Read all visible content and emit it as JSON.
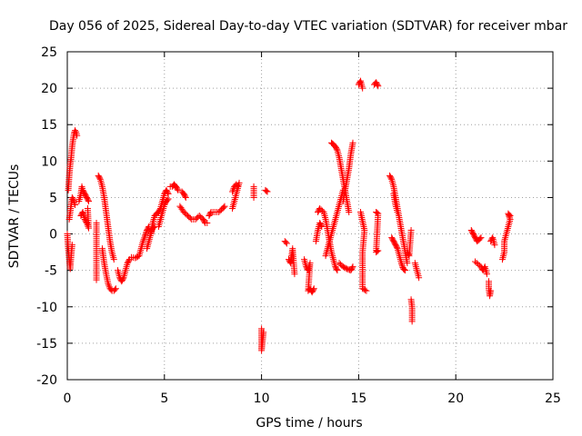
{
  "chart_data": {
    "type": "scatter",
    "title": "Day 056 of 2025, Sidereal Day-to-day VTEC variation (SDTVAR) for receiver mbar",
    "xlabel": "GPS time / hours",
    "ylabel": "SDTVAR / TECUs",
    "xlim": [
      0,
      25
    ],
    "ylim": [
      -20,
      25
    ],
    "xticks": [
      0,
      5,
      10,
      15,
      20,
      25
    ],
    "yticks": [
      -20,
      -15,
      -10,
      -5,
      0,
      5,
      10,
      15,
      20,
      25
    ],
    "x_tick_labels": [
      "0",
      "5",
      "10",
      "15",
      "20",
      "25"
    ],
    "y_tick_labels": [
      "-20",
      "-15",
      "-10",
      "-5",
      "0",
      "5",
      "10",
      "15",
      "20",
      "25"
    ],
    "grid": true,
    "marker": "+",
    "color": "#ff0000",
    "series": [
      {
        "name": "SDTVAR",
        "segments": [
          [
            [
              0.0,
              0.0
            ],
            [
              0.05,
              -2.0
            ],
            [
              0.1,
              -3.5
            ],
            [
              0.15,
              -4.8
            ],
            [
              0.2,
              -3.0
            ],
            [
              0.25,
              -1.5
            ]
          ],
          [
            [
              0.05,
              6.0
            ],
            [
              0.1,
              8.0
            ],
            [
              0.15,
              9.5
            ],
            [
              0.2,
              10.5
            ],
            [
              0.25,
              12.0
            ],
            [
              0.3,
              13.0
            ],
            [
              0.35,
              13.8
            ],
            [
              0.4,
              14.2
            ],
            [
              0.45,
              14.0
            ],
            [
              0.5,
              13.5
            ]
          ],
          [
            [
              0.1,
              2.0
            ],
            [
              0.15,
              3.0
            ],
            [
              0.2,
              4.0
            ],
            [
              0.25,
              5.0
            ],
            [
              0.3,
              4.8
            ],
            [
              0.4,
              4.0
            ]
          ],
          [
            [
              0.6,
              4.5
            ],
            [
              0.7,
              5.5
            ],
            [
              0.75,
              6.5
            ],
            [
              0.8,
              6.0
            ],
            [
              0.9,
              5.5
            ],
            [
              1.0,
              5.0
            ],
            [
              1.1,
              4.5
            ]
          ],
          [
            [
              0.7,
              2.5
            ],
            [
              0.8,
              3.0
            ],
            [
              0.9,
              2.0
            ],
            [
              1.0,
              1.5
            ],
            [
              1.1,
              0.8
            ],
            [
              1.05,
              3.5
            ]
          ],
          [
            [
              1.5,
              1.5
            ],
            [
              1.5,
              -6.3
            ]
          ],
          [
            [
              1.6,
              8.0
            ],
            [
              1.7,
              7.5
            ],
            [
              1.8,
              6.5
            ],
            [
              1.9,
              5.0
            ],
            [
              2.0,
              3.0
            ],
            [
              2.1,
              1.0
            ],
            [
              2.2,
              -1.0
            ],
            [
              2.3,
              -2.5
            ],
            [
              2.4,
              -3.5
            ]
          ],
          [
            [
              1.8,
              -2.0
            ],
            [
              1.9,
              -4.0
            ],
            [
              2.0,
              -5.5
            ],
            [
              2.1,
              -6.8
            ],
            [
              2.2,
              -7.5
            ],
            [
              2.3,
              -7.8
            ],
            [
              2.4,
              -7.8
            ],
            [
              2.5,
              -7.5
            ]
          ],
          [
            [
              2.6,
              -5.0
            ],
            [
              2.7,
              -6.0
            ],
            [
              2.8,
              -6.5
            ],
            [
              2.9,
              -6.0
            ],
            [
              3.0,
              -5.0
            ],
            [
              3.1,
              -4.0
            ],
            [
              3.2,
              -3.5
            ]
          ],
          [
            [
              3.3,
              -3.2
            ],
            [
              3.5,
              -3.3
            ],
            [
              3.7,
              -3.0
            ],
            [
              3.8,
              -2.0
            ],
            [
              3.9,
              -1.0
            ],
            [
              4.0,
              -0.3
            ],
            [
              4.1,
              0.5
            ],
            [
              4.2,
              1.0
            ]
          ],
          [
            [
              4.1,
              -2.0
            ],
            [
              4.2,
              -1.0
            ],
            [
              4.3,
              0.0
            ],
            [
              4.4,
              0.8
            ],
            [
              4.5,
              1.0
            ]
          ],
          [
            [
              4.3,
              0.0
            ],
            [
              4.4,
              1.5
            ],
            [
              4.5,
              2.5
            ],
            [
              4.6,
              2.8
            ],
            [
              4.7,
              3.0
            ],
            [
              4.8,
              3.5
            ],
            [
              4.9,
              4.5
            ],
            [
              5.0,
              5.5
            ],
            [
              5.1,
              6.0
            ],
            [
              5.2,
              5.5
            ]
          ],
          [
            [
              4.7,
              1.0
            ],
            [
              4.8,
              2.0
            ],
            [
              4.9,
              3.0
            ],
            [
              5.0,
              4.0
            ],
            [
              5.1,
              4.5
            ],
            [
              5.2,
              4.8
            ]
          ],
          [
            [
              5.3,
              6.5
            ],
            [
              5.4,
              6.5
            ],
            [
              5.5,
              6.8
            ],
            [
              5.6,
              6.5
            ],
            [
              5.7,
              6.0
            ]
          ],
          [
            [
              5.9,
              5.8
            ],
            [
              6.0,
              5.5
            ],
            [
              6.1,
              5.0
            ]
          ],
          [
            [
              5.8,
              3.8
            ],
            [
              6.0,
              3.0
            ],
            [
              6.2,
              2.5
            ],
            [
              6.4,
              2.0
            ],
            [
              6.6,
              2.0
            ],
            [
              6.8,
              2.5
            ],
            [
              7.0,
              2.0
            ],
            [
              7.1,
              1.5
            ],
            [
              7.2,
              1.5
            ]
          ],
          [
            [
              7.3,
              2.5
            ],
            [
              7.4,
              3.0
            ],
            [
              7.6,
              3.0
            ],
            [
              7.8,
              3.0
            ],
            [
              8.0,
              3.5
            ],
            [
              8.1,
              3.8
            ]
          ],
          [
            [
              8.5,
              3.5
            ],
            [
              8.6,
              4.5
            ],
            [
              8.7,
              5.5
            ],
            [
              8.8,
              6.5
            ],
            [
              8.85,
              7.0
            ]
          ],
          [
            [
              8.5,
              5.8
            ],
            [
              8.6,
              6.5
            ],
            [
              8.7,
              6.8
            ],
            [
              8.8,
              6.5
            ]
          ],
          [
            [
              9.6,
              6.5
            ],
            [
              9.6,
              5.0
            ]
          ],
          [
            [
              10.0,
              -13.0
            ],
            [
              10.0,
              -14.0
            ],
            [
              10.0,
              -15.0
            ],
            [
              10.0,
              -16.0
            ],
            [
              10.1,
              -13.5
            ]
          ],
          [
            [
              10.2,
              6.0
            ],
            [
              10.3,
              5.8
            ]
          ],
          [
            [
              11.2,
              -1.0
            ],
            [
              11.3,
              -1.3
            ]
          ],
          [
            [
              11.4,
              -3.5
            ],
            [
              11.5,
              -4.0
            ],
            [
              11.6,
              -2.0
            ],
            [
              11.7,
              -5.5
            ]
          ],
          [
            [
              12.2,
              -3.5
            ],
            [
              12.3,
              -4.5
            ],
            [
              12.4,
              -5.0
            ],
            [
              12.5,
              -4.0
            ],
            [
              12.4,
              -7.8
            ],
            [
              12.5,
              -7.5
            ],
            [
              12.6,
              -8.0
            ],
            [
              12.7,
              -7.5
            ]
          ],
          [
            [
              12.8,
              -1.0
            ],
            [
              12.9,
              0.5
            ],
            [
              13.0,
              1.5
            ],
            [
              13.1,
              1.0
            ]
          ],
          [
            [
              12.9,
              3.0
            ],
            [
              13.0,
              3.5
            ],
            [
              13.2,
              3.0
            ],
            [
              13.3,
              2.0
            ],
            [
              13.4,
              0.5
            ],
            [
              13.5,
              -1.0
            ],
            [
              13.6,
              -2.5
            ],
            [
              13.7,
              -3.5
            ],
            [
              13.8,
              -4.5
            ],
            [
              13.9,
              -5.0
            ]
          ],
          [
            [
              13.3,
              -3.0
            ],
            [
              13.4,
              -2.0
            ],
            [
              13.5,
              -1.0
            ],
            [
              13.6,
              0.0
            ],
            [
              13.7,
              1.0
            ],
            [
              13.8,
              2.0
            ],
            [
              13.9,
              3.0
            ],
            [
              14.0,
              4.0
            ],
            [
              14.1,
              5.0
            ],
            [
              14.2,
              6.0
            ]
          ],
          [
            [
              13.6,
              12.5
            ],
            [
              13.7,
              12.3
            ],
            [
              13.8,
              12.0
            ],
            [
              13.9,
              11.5
            ],
            [
              14.0,
              10.5
            ],
            [
              14.1,
              9.0
            ],
            [
              14.2,
              7.5
            ],
            [
              14.3,
              6.0
            ],
            [
              14.4,
              4.5
            ],
            [
              14.5,
              3.0
            ]
          ],
          [
            [
              14.2,
              4.5
            ],
            [
              14.3,
              6.0
            ],
            [
              14.4,
              7.5
            ],
            [
              14.5,
              9.0
            ],
            [
              14.6,
              11.0
            ],
            [
              14.7,
              12.5
            ]
          ],
          [
            [
              14.0,
              -4.0
            ],
            [
              14.2,
              -4.5
            ],
            [
              14.4,
              -4.8
            ],
            [
              14.6,
              -5.0
            ],
            [
              14.7,
              -4.5
            ]
          ],
          [
            [
              15.0,
              20.5
            ],
            [
              15.1,
              21.0
            ],
            [
              15.2,
              20.0
            ]
          ],
          [
            [
              15.1,
              3.0
            ],
            [
              15.3,
              0.5
            ],
            [
              15.2,
              -2.5
            ],
            [
              15.2,
              -7.5
            ],
            [
              15.4,
              -7.8
            ]
          ],
          [
            [
              15.8,
              20.5
            ],
            [
              15.9,
              20.8
            ],
            [
              16.0,
              20.3
            ]
          ],
          [
            [
              15.9,
              3.0
            ],
            [
              16.0,
              2.8
            ],
            [
              15.9,
              -2.5
            ],
            [
              16.0,
              -2.3
            ]
          ],
          [
            [
              16.6,
              8.0
            ],
            [
              16.7,
              7.5
            ],
            [
              16.8,
              6.5
            ],
            [
              16.9,
              5.0
            ],
            [
              17.0,
              3.5
            ],
            [
              17.1,
              2.0
            ],
            [
              17.2,
              0.5
            ],
            [
              17.3,
              -1.0
            ],
            [
              17.4,
              -2.5
            ],
            [
              17.5,
              -4.0
            ]
          ],
          [
            [
              16.7,
              -0.5
            ],
            [
              16.8,
              -1.0
            ],
            [
              16.9,
              -1.5
            ],
            [
              17.0,
              -2.0
            ],
            [
              17.1,
              -3.0
            ],
            [
              17.2,
              -4.0
            ],
            [
              17.3,
              -4.8
            ],
            [
              17.4,
              -5.0
            ]
          ],
          [
            [
              16.8,
              5.5
            ],
            [
              16.9,
              4.0
            ],
            [
              17.0,
              3.0
            ]
          ],
          [
            [
              17.5,
              -2.5
            ],
            [
              17.6,
              -3.0
            ],
            [
              17.7,
              0.5
            ]
          ],
          [
            [
              17.7,
              -9.0
            ],
            [
              17.75,
              -10.0
            ],
            [
              17.75,
              -12.0
            ]
          ],
          [
            [
              17.9,
              -4.0
            ],
            [
              18.0,
              -5.0
            ],
            [
              18.1,
              -6.0
            ]
          ],
          [
            [
              20.8,
              0.5
            ],
            [
              20.9,
              0.0
            ],
            [
              21.0,
              -0.5
            ],
            [
              21.1,
              -1.0
            ],
            [
              21.2,
              -0.8
            ],
            [
              21.3,
              -0.5
            ]
          ],
          [
            [
              21.0,
              -3.8
            ],
            [
              21.3,
              -4.5
            ],
            [
              21.4,
              -5.0
            ],
            [
              21.5,
              -4.5
            ],
            [
              21.6,
              -5.5
            ]
          ],
          [
            [
              21.7,
              -6.5
            ],
            [
              21.7,
              -7.5
            ],
            [
              21.75,
              -8.5
            ],
            [
              21.8,
              -7.8
            ]
          ],
          [
            [
              21.8,
              -1.0
            ],
            [
              21.9,
              -0.5
            ],
            [
              22.0,
              -1.5
            ]
          ],
          [
            [
              22.4,
              -3.5
            ],
            [
              22.5,
              -2.5
            ],
            [
              22.5,
              -1.0
            ],
            [
              22.6,
              0.0
            ],
            [
              22.7,
              1.0
            ],
            [
              22.8,
              2.0
            ],
            [
              22.7,
              2.8
            ],
            [
              22.8,
              2.5
            ]
          ]
        ]
      }
    ]
  }
}
